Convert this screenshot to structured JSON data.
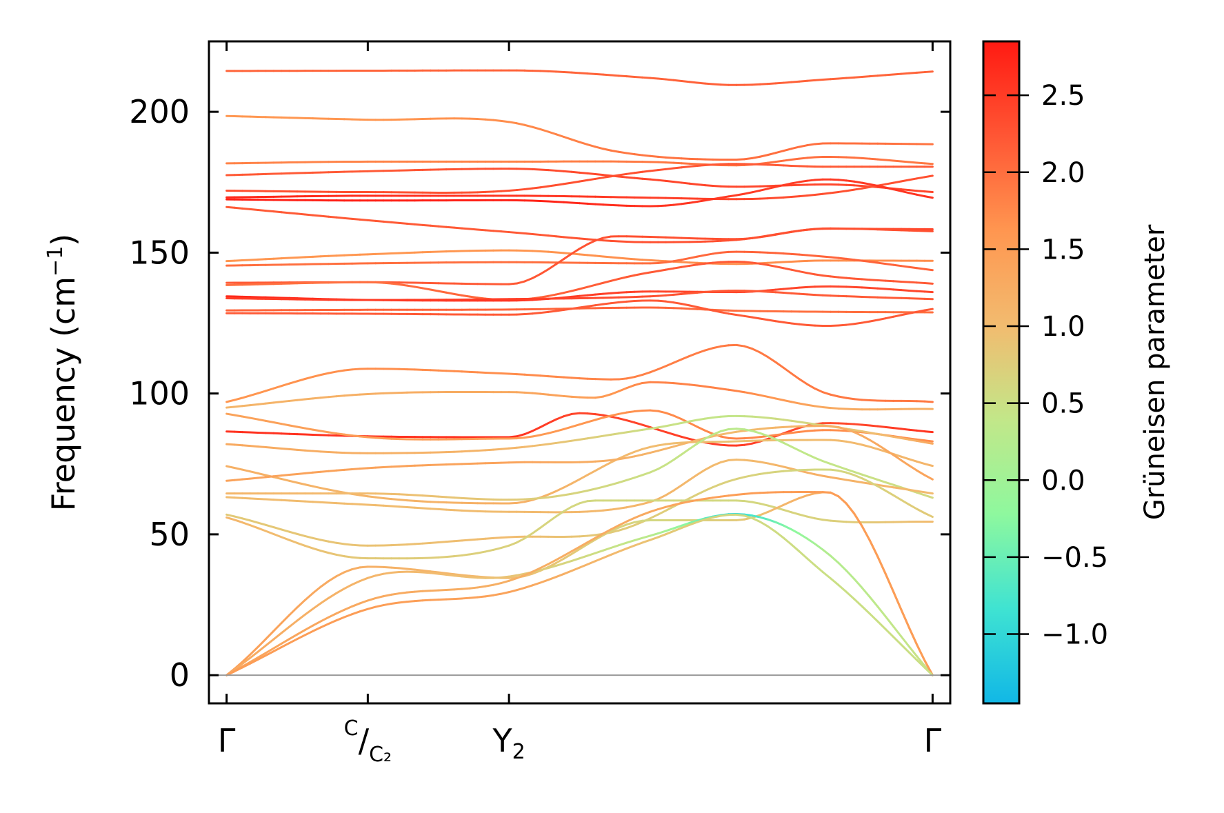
{
  "chart_data": {
    "type": "line",
    "title": "",
    "xlabel": "",
    "ylabel": "Frequency (cm",
    "ylabel_sup": "−1",
    "ylabel_close": ")",
    "ylim": [
      -10,
      225
    ],
    "xlim": [
      -0.025,
      1.025
    ],
    "yticks": [
      0,
      50,
      100,
      150,
      200
    ],
    "ytick_labels": [
      "0",
      "50",
      "100",
      "150",
      "200"
    ],
    "grid": false,
    "xticks": [
      {
        "x": 0.0,
        "label": "Γ"
      },
      {
        "x": 0.2,
        "label": "C",
        "sub": "C₂",
        "fraction": true
      },
      {
        "x": 0.4,
        "label": "Y",
        "sub": "2"
      },
      {
        "x": 1.0,
        "label": "Γ"
      }
    ],
    "zero_line": 0,
    "colorbar": {
      "label": "Grüneisen parameter",
      "min": -1.45,
      "max": 2.85,
      "ticks": [
        -1.0,
        -0.5,
        0.0,
        0.5,
        1.0,
        1.5,
        2.0,
        2.5
      ],
      "tick_labels": [
        "−1.0",
        "−0.5",
        "0.0",
        "0.5",
        "1.0",
        "1.5",
        "2.0",
        "2.5"
      ],
      "colormap": "rainbow",
      "stops": [
        "#11b7e6",
        "#3fe3d2",
        "#8ef89e",
        "#c2e789",
        "#f2bb6f",
        "#ff9650",
        "#ff5634",
        "#ff1a12"
      ]
    },
    "series": [
      {
        "x": [
          0,
          0.2,
          0.4,
          0.6,
          0.72,
          0.85,
          1.0
        ],
        "y": [
          214.5,
          214.6,
          214.7,
          212,
          209.5,
          211.5,
          214.3
        ],
        "g": [
          2.1,
          2.1,
          2.1,
          2.1,
          2.15,
          2.1,
          2.1
        ]
      },
      {
        "x": [
          0,
          0.2,
          0.4,
          0.55,
          0.72,
          0.85,
          1.0
        ],
        "y": [
          198.5,
          197.2,
          196.4,
          186,
          183,
          188.8,
          188.5
        ],
        "g": [
          1.6,
          1.6,
          1.7,
          1.9,
          2.0,
          2.0,
          1.95
        ]
      },
      {
        "x": [
          0,
          0.2,
          0.4,
          0.6,
          0.72,
          0.85,
          1.0
        ],
        "y": [
          181.7,
          182.3,
          182.3,
          182.2,
          181,
          184,
          181.5
        ],
        "g": [
          1.8,
          1.8,
          1.8,
          1.9,
          2.0,
          2.0,
          1.9
        ]
      },
      {
        "x": [
          0,
          0.2,
          0.4,
          0.6,
          0.72,
          0.85,
          1.0
        ],
        "y": [
          177.5,
          178.9,
          179.8,
          176,
          173.4,
          174.2,
          171.5
        ],
        "g": [
          2.2,
          2.2,
          2.3,
          2.4,
          2.4,
          2.4,
          2.4
        ]
      },
      {
        "x": [
          0,
          0.2,
          0.4,
          0.6,
          0.72,
          0.85,
          1.0
        ],
        "y": [
          172,
          171.5,
          172,
          179,
          181.5,
          180.5,
          180.5
        ],
        "g": [
          2.3,
          2.3,
          2.3,
          2.3,
          2.2,
          2.2,
          2.2
        ]
      },
      {
        "x": [
          0,
          0.2,
          0.4,
          0.6,
          0.72,
          0.85,
          1.0
        ],
        "y": [
          169.6,
          170.2,
          170.2,
          169.5,
          169,
          171,
          177.3
        ],
        "g": [
          2.7,
          2.7,
          2.6,
          2.5,
          2.4,
          2.3,
          2.3
        ]
      },
      {
        "x": [
          0,
          0.2,
          0.4,
          0.6,
          0.72,
          0.85,
          1.0
        ],
        "y": [
          168.9,
          168.5,
          168.6,
          166.5,
          170.3,
          176,
          169.5
        ],
        "g": [
          2.8,
          2.8,
          2.8,
          2.6,
          2.5,
          2.5,
          2.6
        ]
      },
      {
        "x": [
          0,
          0.2,
          0.4,
          0.6,
          0.72,
          0.85,
          1.0
        ],
        "y": [
          166.2,
          161.5,
          157.3,
          153.7,
          154.5,
          158.5,
          158.3
        ],
        "g": [
          2.2,
          2.2,
          2.2,
          2.3,
          2.3,
          2.3,
          2.4
        ]
      },
      {
        "x": [
          0,
          0.2,
          0.4,
          0.6,
          0.72,
          0.85,
          1.0
        ],
        "y": [
          147,
          149.4,
          150.8,
          147.3,
          146,
          147.2,
          147.1
        ],
        "g": [
          1.6,
          1.6,
          1.6,
          1.7,
          1.7,
          1.7,
          1.7
        ]
      },
      {
        "x": [
          0,
          0.2,
          0.4,
          0.6,
          0.72,
          0.85,
          1.0
        ],
        "y": [
          145.4,
          146.2,
          146.6,
          146.2,
          150.3,
          148.5,
          143.8
        ],
        "g": [
          2.0,
          2.0,
          2.0,
          2.0,
          2.1,
          2.1,
          2.1
        ]
      },
      {
        "x": [
          0,
          0.2,
          0.4,
          0.55,
          0.72,
          0.85,
          1.0
        ],
        "y": [
          139.3,
          139.5,
          138.8,
          155.8,
          154.8,
          158.6,
          157.6
        ],
        "g": [
          2.2,
          2.2,
          2.2,
          2.3,
          2.3,
          2.3,
          2.3
        ]
      },
      {
        "x": [
          0,
          0.2,
          0.4,
          0.6,
          0.72,
          0.85,
          1.0
        ],
        "y": [
          138.5,
          139.5,
          133.2,
          143,
          146.8,
          141.7,
          139
        ],
        "g": [
          2.0,
          2.0,
          2.1,
          2.2,
          2.2,
          2.2,
          2.2
        ]
      },
      {
        "x": [
          0,
          0.2,
          0.4,
          0.6,
          0.72,
          0.85,
          1.0
        ],
        "y": [
          134.5,
          133.2,
          133,
          136.2,
          136,
          138,
          136
        ],
        "g": [
          2.7,
          2.7,
          2.6,
          2.4,
          2.4,
          2.4,
          2.4
        ]
      },
      {
        "x": [
          0,
          0.2,
          0.4,
          0.6,
          0.72,
          0.85,
          1.0
        ],
        "y": [
          133.8,
          133.2,
          133.5,
          134.5,
          136.5,
          134.8,
          133.5
        ],
        "g": [
          2.5,
          2.5,
          2.5,
          2.3,
          2.2,
          2.2,
          2.2
        ]
      },
      {
        "x": [
          0,
          0.2,
          0.4,
          0.6,
          0.72,
          0.85,
          1.0
        ],
        "y": [
          129.5,
          129.7,
          129.8,
          130.5,
          129.4,
          129,
          128.8
        ],
        "g": [
          2.1,
          2.1,
          2.1,
          2.1,
          2.0,
          2.0,
          2.0
        ]
      },
      {
        "x": [
          0,
          0.2,
          0.4,
          0.6,
          0.72,
          0.85,
          1.0
        ],
        "y": [
          128.5,
          128.3,
          128,
          133,
          128,
          124,
          130
        ],
        "g": [
          2.2,
          2.2,
          2.2,
          2.2,
          2.2,
          2.2,
          2.2
        ]
      },
      {
        "x": [
          0,
          0.2,
          0.4,
          0.55,
          0.72,
          0.85,
          1.0
        ],
        "y": [
          97,
          108.8,
          107,
          105,
          117.2,
          100,
          97
        ],
        "g": [
          1.6,
          1.7,
          1.7,
          1.8,
          1.9,
          1.9,
          1.9
        ]
      },
      {
        "x": [
          0,
          0.2,
          0.4,
          0.52,
          0.6,
          0.72,
          0.85,
          1.0
        ],
        "y": [
          95,
          99.8,
          100.5,
          98.5,
          104,
          101,
          95,
          94.5
        ],
        "g": [
          1.1,
          1.2,
          1.3,
          1.5,
          1.8,
          1.8,
          1.3,
          1.2
        ]
      },
      {
        "x": [
          0,
          0.2,
          0.4,
          0.5,
          0.72,
          0.85,
          1.0
        ],
        "y": [
          86.5,
          84.8,
          84.5,
          93,
          81.5,
          89.5,
          86.3
        ],
        "g": [
          2.6,
          2.6,
          2.6,
          2.4,
          2.5,
          2.3,
          2.6
        ]
      },
      {
        "x": [
          0,
          0.2,
          0.4,
          0.6,
          0.72,
          0.85,
          1.0
        ],
        "y": [
          92.8,
          84.5,
          84,
          94,
          84,
          87,
          83
        ],
        "g": [
          1.4,
          1.5,
          1.5,
          1.7,
          1.8,
          1.7,
          1.7
        ]
      },
      {
        "x": [
          0,
          0.2,
          0.4,
          0.6,
          0.72,
          0.85,
          1.0
        ],
        "y": [
          82,
          78.8,
          80.5,
          87.5,
          92,
          88.5,
          82.2
        ],
        "g": [
          1.3,
          1.2,
          1.1,
          0.5,
          0.4,
          0.7,
          1.3
        ]
      },
      {
        "x": [
          0,
          0.2,
          0.4,
          0.6,
          0.72,
          0.85,
          1.0
        ],
        "y": [
          74.2,
          63.5,
          61,
          81,
          83,
          83.5,
          74.3
        ],
        "g": [
          1.2,
          1.1,
          1.2,
          1.0,
          0.9,
          1.0,
          1.1
        ]
      },
      {
        "x": [
          0,
          0.2,
          0.4,
          0.55,
          0.72,
          0.85,
          1.0
        ],
        "y": [
          69,
          73.5,
          75.5,
          76.5,
          86.3,
          88.5,
          69.5
        ],
        "g": [
          1.4,
          1.4,
          1.4,
          1.2,
          1.0,
          1.2,
          1.4
        ]
      },
      {
        "x": [
          0,
          0.2,
          0.4,
          0.6,
          0.72,
          0.85,
          1.0
        ],
        "y": [
          64.5,
          64.5,
          62.3,
          72,
          87.5,
          75.5,
          63
        ],
        "g": [
          1.1,
          1.0,
          0.8,
          0.5,
          0.3,
          0.4,
          0.6
        ]
      },
      {
        "x": [
          0,
          0.2,
          0.4,
          0.6,
          0.72,
          0.85,
          1.0
        ],
        "y": [
          63.2,
          60.5,
          58,
          61.5,
          76.5,
          70.5,
          64.5
        ],
        "g": [
          1.0,
          1.0,
          1.0,
          1.1,
          1.0,
          1.2,
          1.0
        ]
      },
      {
        "x": [
          0,
          0.2,
          0.4,
          0.55,
          0.72,
          0.85,
          1.0
        ],
        "y": [
          57,
          46,
          49,
          51,
          69.5,
          73,
          56.2
        ],
        "g": [
          0.8,
          0.9,
          1.0,
          0.8,
          0.7,
          0.6,
          0.8
        ]
      },
      {
        "x": [
          0,
          0.2,
          0.4,
          0.52,
          0.72,
          0.85,
          1.0
        ],
        "y": [
          56,
          41.5,
          46,
          62,
          62,
          55,
          54.5
        ],
        "g": [
          1.1,
          0.8,
          0.7,
          0.6,
          0.6,
          0.7,
          1.0
        ]
      },
      {
        "x": [
          0,
          0.2,
          0.4,
          0.6,
          0.72,
          0.85,
          1.0
        ],
        "y": [
          0,
          38.5,
          34.5,
          55,
          55,
          65,
          0
        ],
        "g": [
          1.5,
          1.2,
          1.0,
          0.6,
          0.8,
          1.3,
          1.5
        ]
      },
      {
        "x": [
          0,
          0.2,
          0.4,
          0.6,
          0.72,
          0.85,
          1.0
        ],
        "y": [
          0,
          34.5,
          35,
          49.5,
          57.2,
          43.5,
          0
        ],
        "g": [
          1.3,
          1.1,
          0.9,
          0.3,
          -1.0,
          0.2,
          0.5
        ]
      },
      {
        "x": [
          0,
          0.2,
          0.4,
          0.6,
          0.72,
          0.85,
          1.0
        ],
        "y": [
          0,
          26.5,
          33.5,
          58,
          64,
          65,
          0
        ],
        "g": [
          1.4,
          1.3,
          1.2,
          1.3,
          1.5,
          1.5,
          1.5
        ]
      },
      {
        "x": [
          0,
          0.2,
          0.4,
          0.6,
          0.72,
          0.85,
          1.0
        ],
        "y": [
          0,
          23.5,
          29.5,
          48,
          57,
          35.5,
          0
        ],
        "g": [
          1.5,
          1.5,
          1.4,
          0.9,
          0.6,
          0.5,
          0.5
        ]
      }
    ]
  }
}
